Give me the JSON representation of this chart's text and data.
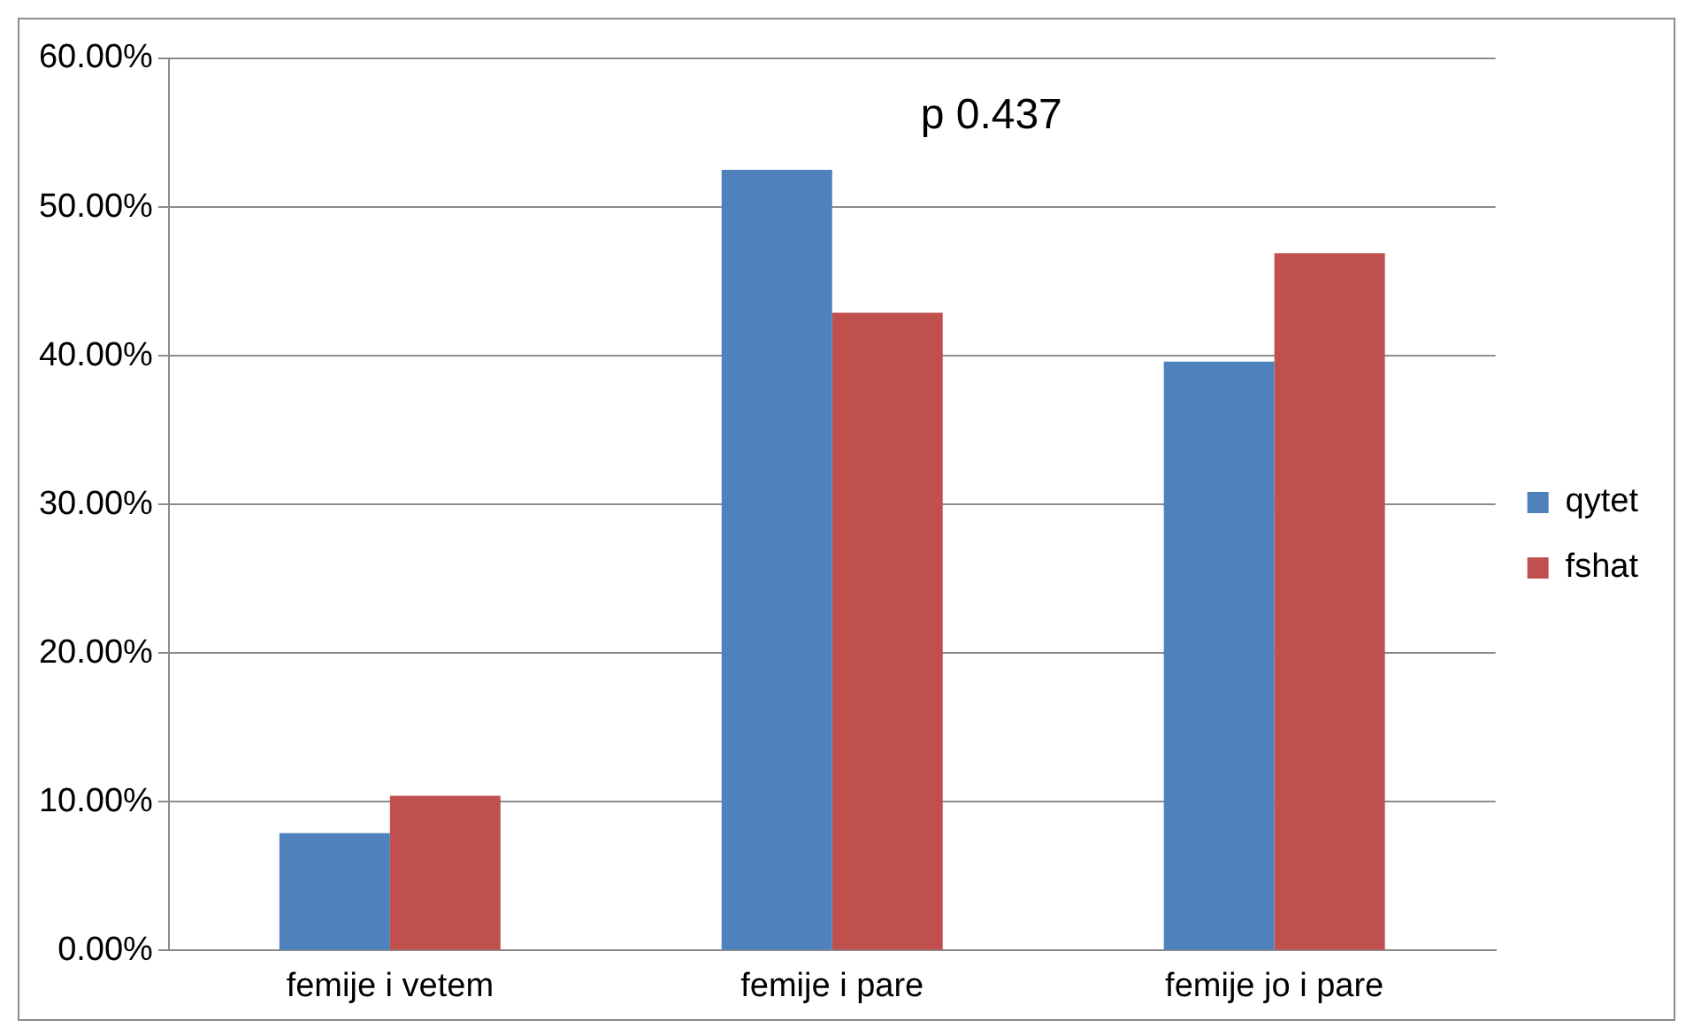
{
  "chart_data": {
    "type": "bar",
    "categories": [
      "femije i vetem",
      "femije i pare",
      "femije jo i pare"
    ],
    "series": [
      {
        "name": "qytet",
        "color": "#4f81bd",
        "values": [
          7.9,
          52.5,
          39.6
        ]
      },
      {
        "name": "fshat",
        "color": "#c0504d",
        "values": [
          10.4,
          42.9,
          46.9
        ]
      }
    ],
    "ylim": [
      0,
      60
    ],
    "yticks": [
      {
        "value": 0,
        "label": "0.00%"
      },
      {
        "value": 10,
        "label": "10.00%"
      },
      {
        "value": 20,
        "label": "20.00%"
      },
      {
        "value": 30,
        "label": "30.00%"
      },
      {
        "value": 40,
        "label": "40.00%"
      },
      {
        "value": 50,
        "label": "50.00%"
      },
      {
        "value": 60,
        "label": "60.00%"
      }
    ],
    "grid": "y",
    "legend": "right",
    "annotations": [
      "p 0.437"
    ]
  }
}
